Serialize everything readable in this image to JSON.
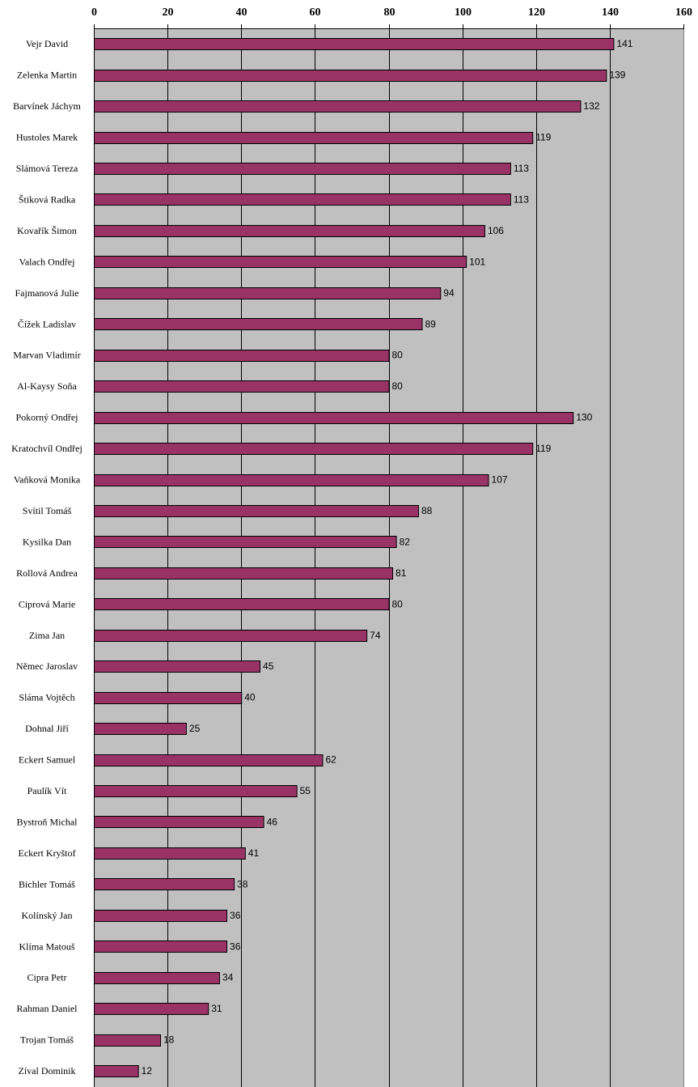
{
  "chart_data": {
    "type": "bar",
    "orientation": "horizontal",
    "title": "",
    "xlabel": "",
    "ylabel": "",
    "xlim": [
      0,
      160
    ],
    "x_ticks": [
      0,
      20,
      40,
      60,
      80,
      100,
      120,
      140,
      160
    ],
    "x_tick_labels": [
      "0",
      "20",
      "40",
      "60",
      "80",
      "100",
      "120",
      "140",
      "160"
    ],
    "x_axis_position": "top",
    "grid": true,
    "legend": "none",
    "data_labels": true,
    "colors": {
      "bar": "#993366",
      "plot_background": "#c0c0c0",
      "gridline": "#000000"
    },
    "categories": [
      "Vejr David",
      "Zelenka Martin",
      "Barvínek Jáchym",
      "Hustoles Marek",
      "Slámová Tereza",
      "Štiková Radka",
      "Kovařík Šimon",
      "Valach Ondřej",
      "Fajmanová Julie",
      "Čížek Ladislav",
      "Marvan Vladimír",
      "Al-Kaysy Soňa",
      "Pokorný Ondřej",
      "Kratochvíl Ondřej",
      "Vaňková Monika",
      "Svítil Tomáš",
      "Kysilka Dan",
      "Rollová Andrea",
      "Ciprová Marie",
      "Zima Jan",
      "Němec Jaroslav",
      "Sláma Vojtěch",
      "Dohnal Jiří",
      "Eckert Samuel",
      "Paulík Vít",
      "Bystroň Michal",
      "Eckert Kryštof",
      "Bichler Tomáš",
      "Kolínský Jan",
      "Klíma Matouš",
      "Cipra Petr",
      "Rahman Daniel",
      "Trojan Tomáš",
      "Zíval Dominik"
    ],
    "values": [
      141,
      139,
      132,
      119,
      113,
      113,
      106,
      101,
      94,
      89,
      80,
      80,
      130,
      119,
      107,
      88,
      82,
      81,
      80,
      74,
      45,
      40,
      25,
      62,
      55,
      46,
      41,
      38,
      36,
      36,
      34,
      31,
      18,
      12
    ]
  }
}
